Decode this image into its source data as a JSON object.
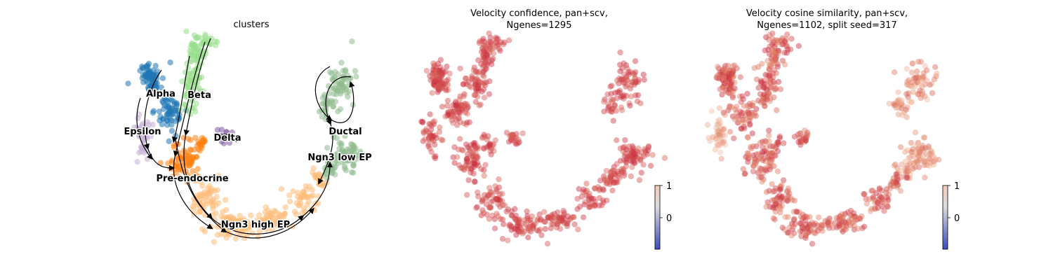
{
  "chart_data": [
    {
      "type": "scatter",
      "title": "clusters",
      "legend_placement": "on data",
      "clusters": [
        {
          "name": "Alpha",
          "color": "#1f77b4"
        },
        {
          "name": "Beta",
          "color": "#98df8a"
        },
        {
          "name": "Epsilon",
          "color": "#c5b0d5"
        },
        {
          "name": "Delta",
          "color": "#7f5aa2"
        },
        {
          "name": "Ductal",
          "color": "#8fbc8f"
        },
        {
          "name": "Ngn3 low EP",
          "color": "#8fbc8f"
        },
        {
          "name": "Pre-endocrine",
          "color": "#ff7f0e"
        },
        {
          "name": "Ngn3 high EP",
          "color": "#ffbb78"
        }
      ],
      "streamlines": true
    },
    {
      "type": "scatter",
      "title": "Velocity confidence, pan+scv,",
      "subtitle": "Ngenes=1295",
      "colorbar": {
        "ticks": [
          "1",
          "0"
        ],
        "colormap": "coolwarm"
      }
    },
    {
      "type": "scatter",
      "title": "Velocity cosine similarity, pan+scv,",
      "subtitle": "Ngenes=1102, split seed=317",
      "colorbar": {
        "ticks": [
          "1",
          "0"
        ],
        "colormap": "coolwarm"
      }
    }
  ]
}
